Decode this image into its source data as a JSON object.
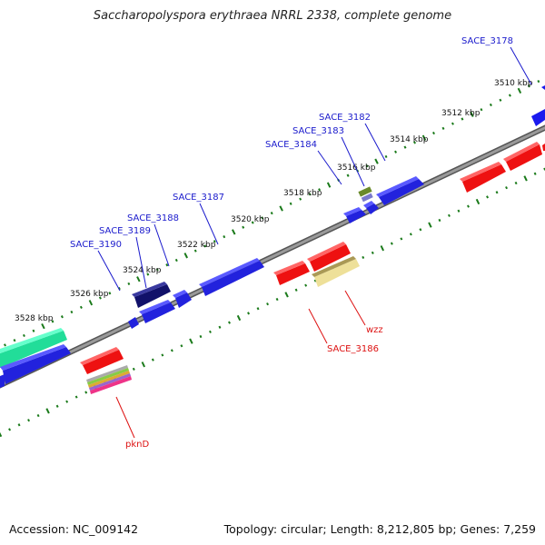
{
  "title": "Saccharopolyspora erythraea NRRL 2338, complete genome",
  "footer": {
    "accession": "Accession: NC_009142",
    "summary": "Topology: circular; Length: 8,212,805 bp; Genes: 7,259"
  },
  "colors": {
    "forward_label": "#1a1acc",
    "reverse_label": "#dd1111",
    "tick": "#1a7a1a",
    "backbone": "#8a8a8a"
  },
  "ticks": [
    "3510 kbp",
    "3512 kbp",
    "3514 kbp",
    "3516 kbp",
    "3518 kbp",
    "3520 kbp",
    "3522 kbp",
    "3524 kbp",
    "3526 kbp",
    "3528 kbp"
  ],
  "forward_labels": [
    "SACE_3178",
    "SACE_3182",
    "SACE_3183",
    "SACE_3184",
    "SACE_3187",
    "SACE_3188",
    "SACE_3189",
    "SACE_3190"
  ],
  "reverse_labels": [
    "wzz",
    "SACE_3186",
    "pknD"
  ]
}
